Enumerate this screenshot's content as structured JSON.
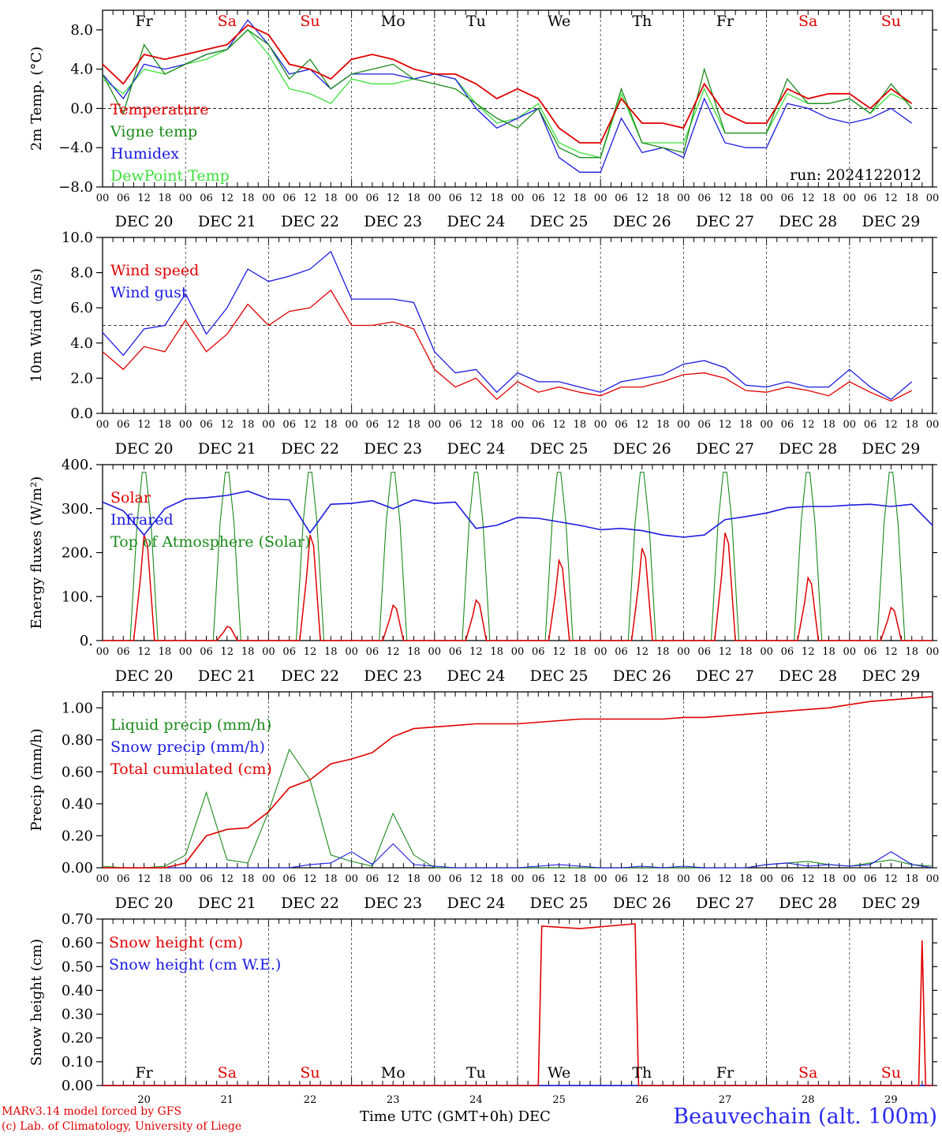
{
  "days": [
    "Fr",
    "Sa",
    "Su",
    "Mo",
    "Tu",
    "We",
    "Th",
    "Fr",
    "Sa",
    "Su"
  ],
  "day_colors": [
    "#000000",
    "#e00000",
    "#e00000",
    "#000000",
    "#000000",
    "#000000",
    "#000000",
    "#000000",
    "#e00000",
    "#e00000"
  ],
  "hour_ticks": [
    "00",
    "06",
    "12",
    "18"
  ],
  "hour_end": "00",
  "date_labels": [
    "DEC 20",
    "DEC 21",
    "DEC 22",
    "DEC 23",
    "DEC 24",
    "DEC 25",
    "DEC 26",
    "DEC 27",
    "DEC 28",
    "DEC 29"
  ],
  "bottom_day_numbers": [
    "20",
    "21",
    "22",
    "23",
    "24",
    "25",
    "26",
    "27",
    "28",
    "29"
  ],
  "footer": {
    "model": "MARv3.14 model forced by GFS",
    "lab": "(c) Lab. of Climatology, University of Liege",
    "xlabel": "Time UTC (GMT+0h) DEC",
    "station": "Beauvechain (alt. 100m)"
  },
  "colors": {
    "red": "#e00000",
    "green": "#1a8a1a",
    "blue": "#1a1ae0",
    "lightgreen": "#3ae03a"
  },
  "chart_data": [
    {
      "type": "line",
      "ylabel": "2m Temp. (°C)",
      "ylim": [
        -8,
        10
      ],
      "yticks": [
        "8.0",
        "4.0",
        "0.0",
        "−4.0",
        "−8.0"
      ],
      "ytick_values": [
        8,
        4,
        0,
        -4,
        -8
      ],
      "ref_line": 0,
      "annotation": "run: 2024122012",
      "x": [
        0,
        6,
        12,
        18,
        24,
        30,
        36,
        42,
        48,
        54,
        60,
        66,
        72,
        78,
        84,
        90,
        96,
        102,
        108,
        114,
        120,
        126,
        132,
        138,
        144,
        150,
        156,
        162,
        168,
        174,
        180,
        186,
        192,
        198,
        204,
        210,
        216,
        222,
        228,
        234
      ],
      "series": [
        {
          "name": "Temperature",
          "color": "red",
          "values": [
            4.5,
            2.5,
            5.5,
            5.0,
            5.5,
            6.0,
            6.5,
            8.5,
            7.5,
            4.5,
            4.0,
            3.0,
            5.0,
            5.5,
            5.0,
            4.0,
            3.5,
            3.5,
            2.5,
            1.0,
            2.0,
            1.0,
            -2.0,
            -3.5,
            -3.5,
            1.0,
            -1.5,
            -1.5,
            -2.0,
            2.5,
            -0.5,
            -1.5,
            -1.5,
            2.0,
            1.0,
            1.5,
            1.5,
            0.0,
            2.0,
            0.5
          ]
        },
        {
          "name": "Vigne temp",
          "color": "green",
          "values": [
            3.5,
            -0.5,
            6.5,
            3.5,
            4.5,
            5.5,
            6.0,
            8.0,
            6.5,
            3.0,
            5.0,
            2.0,
            3.5,
            4.0,
            4.5,
            3.0,
            2.5,
            2.0,
            0.5,
            -1.0,
            -2.0,
            0.0,
            -4.0,
            -5.0,
            -5.0,
            2.0,
            -3.5,
            -4.0,
            -4.5,
            4.0,
            -2.5,
            -2.5,
            -2.5,
            3.0,
            0.5,
            0.5,
            1.0,
            -0.5,
            2.5,
            0.0
          ]
        },
        {
          "name": "Humidex",
          "color": "blue",
          "values": [
            3.5,
            1.0,
            4.5,
            4.0,
            4.5,
            5.5,
            6.0,
            9.0,
            6.5,
            3.5,
            4.0,
            2.0,
            3.5,
            3.5,
            3.5,
            3.0,
            3.5,
            3.0,
            0.0,
            -2.0,
            -1.0,
            0.0,
            -5.0,
            -6.5,
            -6.5,
            -1.0,
            -4.5,
            -4.0,
            -5.0,
            1.0,
            -3.5,
            -4.0,
            -4.0,
            0.5,
            0.0,
            -1.0,
            -1.5,
            -1.0,
            0.0,
            -1.5
          ]
        },
        {
          "name": "DewPoint Temp",
          "color": "lightgreen",
          "values": [
            3.0,
            1.5,
            4.0,
            3.5,
            4.5,
            5.0,
            6.0,
            8.0,
            5.5,
            2.0,
            1.5,
            0.5,
            3.0,
            2.5,
            2.5,
            3.0,
            3.5,
            3.0,
            0.5,
            -1.5,
            -1.0,
            0.5,
            -3.5,
            -4.5,
            -5.0,
            1.5,
            -3.5,
            -3.5,
            -3.5,
            2.0,
            -2.5,
            -2.5,
            -2.5,
            1.5,
            0.5,
            0.5,
            1.0,
            -0.5,
            1.5,
            0.5
          ]
        }
      ]
    },
    {
      "type": "line",
      "ylabel": "10m Wind (m/s)",
      "ylim": [
        0,
        10
      ],
      "yticks": [
        "10.0",
        "8.0",
        "6.0",
        "4.0",
        "2.0",
        "0.0"
      ],
      "ytick_values": [
        10,
        8,
        6,
        4,
        2,
        0
      ],
      "ref_line": 5,
      "x": [
        0,
        6,
        12,
        18,
        24,
        30,
        36,
        42,
        48,
        54,
        60,
        66,
        72,
        78,
        84,
        90,
        96,
        102,
        108,
        114,
        120,
        126,
        132,
        138,
        144,
        150,
        156,
        162,
        168,
        174,
        180,
        186,
        192,
        198,
        204,
        210,
        216,
        222,
        228,
        234
      ],
      "series": [
        {
          "name": "Wind speed",
          "color": "red",
          "values": [
            3.5,
            2.5,
            3.8,
            3.5,
            5.3,
            3.5,
            4.5,
            6.2,
            5.0,
            5.8,
            6.0,
            7.0,
            5.0,
            5.0,
            5.2,
            4.8,
            2.5,
            1.5,
            2.0,
            0.8,
            1.8,
            1.2,
            1.5,
            1.2,
            1.0,
            1.5,
            1.5,
            1.8,
            2.2,
            2.3,
            2.0,
            1.3,
            1.2,
            1.5,
            1.3,
            1.0,
            1.8,
            1.2,
            0.7,
            1.3
          ]
        },
        {
          "name": "Wind gust",
          "color": "blue",
          "values": [
            4.6,
            3.3,
            4.8,
            5.0,
            6.8,
            4.5,
            6.0,
            8.2,
            7.5,
            7.8,
            8.2,
            9.2,
            6.5,
            6.5,
            6.5,
            6.3,
            3.5,
            2.3,
            2.5,
            1.2,
            2.3,
            1.8,
            1.8,
            1.5,
            1.2,
            1.8,
            2.0,
            2.2,
            2.8,
            3.0,
            2.6,
            1.6,
            1.5,
            1.8,
            1.5,
            1.5,
            2.5,
            1.5,
            0.8,
            1.8
          ]
        }
      ]
    },
    {
      "type": "line",
      "ylabel": "Energy fluxes (W/m²)",
      "ylim": [
        0,
        400
      ],
      "yticks": [
        "400.",
        "300.",
        "200.",
        "100.",
        "0."
      ],
      "ytick_values": [
        400,
        300,
        200,
        100,
        0
      ],
      "infrared": {
        "name": "Infrared",
        "color": "blue",
        "x": [
          0,
          6,
          12,
          18,
          24,
          30,
          36,
          42,
          48,
          54,
          60,
          66,
          72,
          78,
          84,
          90,
          96,
          102,
          108,
          114,
          120,
          126,
          132,
          138,
          144,
          150,
          156,
          162,
          168,
          174,
          180,
          186,
          192,
          198,
          204,
          210,
          216,
          222,
          228,
          234,
          240
        ],
        "values": [
          315,
          295,
          240,
          300,
          322,
          325,
          330,
          340,
          322,
          320,
          245,
          310,
          312,
          318,
          300,
          320,
          312,
          315,
          255,
          262,
          280,
          278,
          270,
          262,
          252,
          255,
          250,
          240,
          235,
          240,
          275,
          282,
          290,
          302,
          305,
          305,
          308,
          310,
          305,
          310,
          262
        ]
      },
      "solar_peaks": {
        "name": "Solar",
        "color": "red",
        "values": [
          240,
          32,
          240,
          80,
          92,
          182,
          210,
          245,
          143,
          75
        ]
      },
      "toa_peak": {
        "name": "Top of Atmosphere (Solar)",
        "color": "green",
        "value": 383
      }
    },
    {
      "type": "line",
      "ylabel": "Precip (mm/h)",
      "ylim": [
        0,
        1.1
      ],
      "yticks": [
        "1.00",
        "0.80",
        "0.60",
        "0.40",
        "0.20",
        "0.00"
      ],
      "ytick_values": [
        1.0,
        0.8,
        0.6,
        0.4,
        0.2,
        0.0
      ],
      "x": [
        0,
        6,
        12,
        18,
        24,
        30,
        36,
        42,
        48,
        54,
        60,
        66,
        72,
        78,
        84,
        90,
        96,
        102,
        108,
        114,
        120,
        126,
        132,
        138,
        144,
        150,
        156,
        162,
        168,
        174,
        180,
        186,
        192,
        198,
        204,
        210,
        216,
        222,
        228,
        234,
        240
      ],
      "series": [
        {
          "name": "Liquid precip (mm/h)",
          "color": "green",
          "values": [
            0.01,
            0.0,
            0.0,
            0.01,
            0.08,
            0.47,
            0.05,
            0.03,
            0.35,
            0.74,
            0.55,
            0.08,
            0.04,
            0.01,
            0.34,
            0.08,
            0.0,
            0.0,
            0.0,
            0.0,
            0.0,
            0.0,
            0.0,
            0.0,
            0.0,
            0.0,
            0.0,
            0.0,
            0.0,
            0.0,
            0.0,
            0.0,
            0.02,
            0.03,
            0.04,
            0.02,
            0.01,
            0.03,
            0.05,
            0.02,
            0.01
          ]
        },
        {
          "name": "Snow precip (mm/h)",
          "color": "blue",
          "values": [
            0.0,
            0.0,
            0.0,
            0.0,
            0.0,
            0.0,
            0.0,
            0.0,
            0.0,
            0.0,
            0.02,
            0.03,
            0.1,
            0.02,
            0.15,
            0.02,
            0.01,
            0.0,
            0.0,
            0.0,
            0.0,
            0.01,
            0.02,
            0.01,
            0.0,
            0.0,
            0.01,
            0.0,
            0.01,
            0.0,
            0.0,
            0.0,
            0.02,
            0.03,
            0.01,
            0.02,
            0.01,
            0.02,
            0.1,
            0.02,
            0.0
          ]
        },
        {
          "name": "Total cumulated (cm)",
          "color": "red",
          "values": [
            0.0,
            0.0,
            0.0,
            0.0,
            0.03,
            0.2,
            0.24,
            0.25,
            0.35,
            0.5,
            0.55,
            0.65,
            0.68,
            0.72,
            0.82,
            0.87,
            0.88,
            0.89,
            0.9,
            0.9,
            0.9,
            0.91,
            0.92,
            0.93,
            0.93,
            0.93,
            0.93,
            0.93,
            0.94,
            0.94,
            0.95,
            0.96,
            0.97,
            0.98,
            0.99,
            1.0,
            1.02,
            1.04,
            1.05,
            1.06,
            1.07
          ]
        }
      ]
    },
    {
      "type": "line",
      "ylabel": "Snow height (cm)",
      "ylim": [
        0,
        0.7
      ],
      "yticks": [
        "0.70",
        "0.60",
        "0.50",
        "0.40",
        "0.30",
        "0.20",
        "0.10",
        "0.00"
      ],
      "ytick_values": [
        0.7,
        0.6,
        0.5,
        0.4,
        0.3,
        0.2,
        0.1,
        0.0
      ],
      "series": [
        {
          "name": "Snow height (cm)",
          "color": "red",
          "x": [
            0,
            126,
            127,
            138,
            154,
            155,
            236,
            237,
            238,
            239,
            240
          ],
          "values": [
            0,
            0,
            0.67,
            0.66,
            0.68,
            0,
            0,
            0.61,
            0,
            0,
            0
          ]
        },
        {
          "name": "Snow height (cm W.E.)",
          "color": "blue",
          "x": [
            0,
            240
          ],
          "values": [
            0,
            0
          ]
        }
      ]
    }
  ]
}
